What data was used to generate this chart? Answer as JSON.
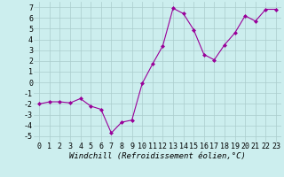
{
  "x": [
    0,
    1,
    2,
    3,
    4,
    5,
    6,
    7,
    8,
    9,
    10,
    11,
    12,
    13,
    14,
    15,
    16,
    17,
    18,
    19,
    20,
    21,
    22,
    23
  ],
  "y": [
    -2.0,
    -1.8,
    -1.8,
    -1.9,
    -1.5,
    -2.2,
    -2.5,
    -4.7,
    -3.7,
    -3.5,
    -0.1,
    1.7,
    3.4,
    6.9,
    6.4,
    4.9,
    2.6,
    2.1,
    3.5,
    4.6,
    6.2,
    5.7,
    6.8,
    6.8
  ],
  "line_color": "#990099",
  "marker": "D",
  "marker_size": 2.0,
  "bg_color": "#cceeee",
  "grid_color": "#aacccc",
  "xlabel": "Windchill (Refroidissement éolien,°C)",
  "ylabel_ticks": [
    -5,
    -4,
    -3,
    -2,
    -1,
    0,
    1,
    2,
    3,
    4,
    5,
    6,
    7
  ],
  "xlim": [
    -0.5,
    23.5
  ],
  "ylim": [
    -5.5,
    7.5
  ],
  "xlabel_fontsize": 6.5,
  "tick_fontsize": 6.0,
  "line_width": 0.8
}
